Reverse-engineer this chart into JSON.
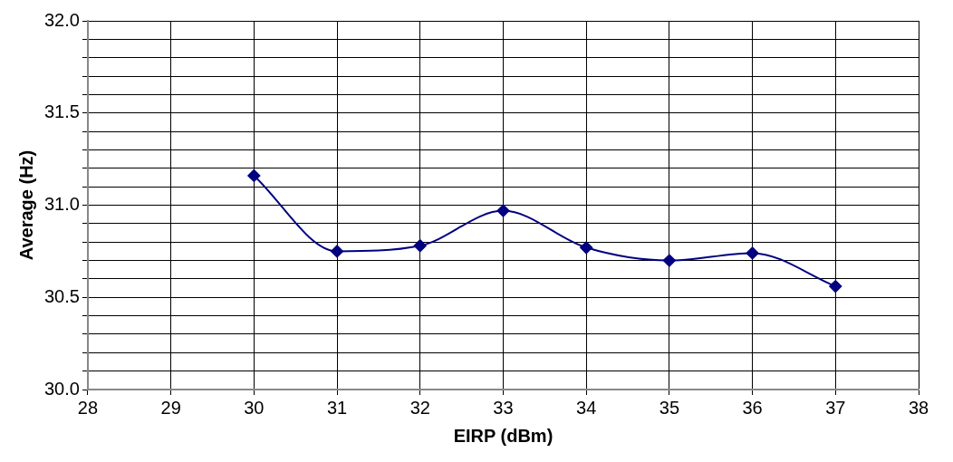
{
  "chart_data": {
    "type": "line",
    "xlabel": "EIRP (dBm)",
    "ylabel": "Average (Hz)",
    "x": [
      30,
      31,
      32,
      33,
      34,
      35,
      36,
      37
    ],
    "series": [
      {
        "color": "#000080",
        "values": [
          31.16,
          30.75,
          30.78,
          30.97,
          30.77,
          30.7,
          30.74,
          30.56
        ]
      }
    ],
    "xlim": [
      28,
      38
    ],
    "xticks": [
      28,
      29,
      30,
      31,
      32,
      33,
      34,
      35,
      36,
      37,
      38
    ],
    "ylim": [
      30,
      32
    ],
    "yticks": [
      {
        "value": 30,
        "label": "30.0"
      },
      {
        "value": 30.1,
        "label": null
      },
      {
        "value": 30.2,
        "label": null
      },
      {
        "value": 30.3,
        "label": null
      },
      {
        "value": 30.4,
        "label": null
      },
      {
        "value": 30.5,
        "label": "30.5"
      },
      {
        "value": 30.6,
        "label": null
      },
      {
        "value": 30.7,
        "label": null
      },
      {
        "value": 30.8,
        "label": null
      },
      {
        "value": 30.9,
        "label": null
      },
      {
        "value": 31,
        "label": "31.0"
      },
      {
        "value": 31.1,
        "label": null
      },
      {
        "value": 31.2,
        "label": null
      },
      {
        "value": 31.3,
        "label": null
      },
      {
        "value": 31.4,
        "label": null
      },
      {
        "value": 31.5,
        "label": "31.5"
      },
      {
        "value": 31.6,
        "label": null
      },
      {
        "value": 31.7,
        "label": null
      },
      {
        "value": 31.8,
        "label": null
      },
      {
        "value": 31.9,
        "label": null
      },
      {
        "value": 32,
        "label": "32.0"
      }
    ],
    "grid": true,
    "legend": false,
    "marker": "diamond",
    "line_style": "solid"
  }
}
